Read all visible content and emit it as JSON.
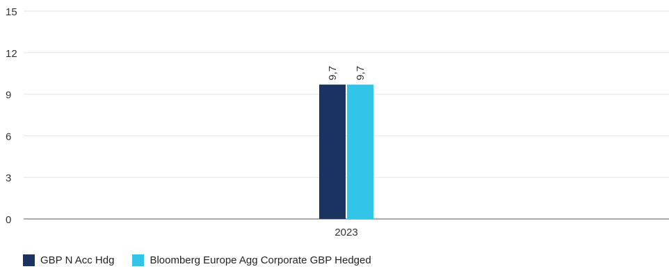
{
  "chart_data": {
    "type": "bar",
    "categories": [
      "2023"
    ],
    "series": [
      {
        "name": "GBP N Acc Hdg",
        "values": [
          9.7
        ],
        "color": "#1b3360",
        "label": "9,7"
      },
      {
        "name": "Bloomberg Europe Agg Corporate GBP Hedged",
        "values": [
          9.7
        ],
        "color": "#33c5e8",
        "label": "9,7"
      }
    ],
    "ylim": [
      0,
      15
    ],
    "yticks": [
      0,
      3,
      6,
      9,
      12,
      15
    ],
    "grid": true,
    "legend_position": "bottom-left",
    "title": "",
    "xlabel": "",
    "ylabel": ""
  }
}
